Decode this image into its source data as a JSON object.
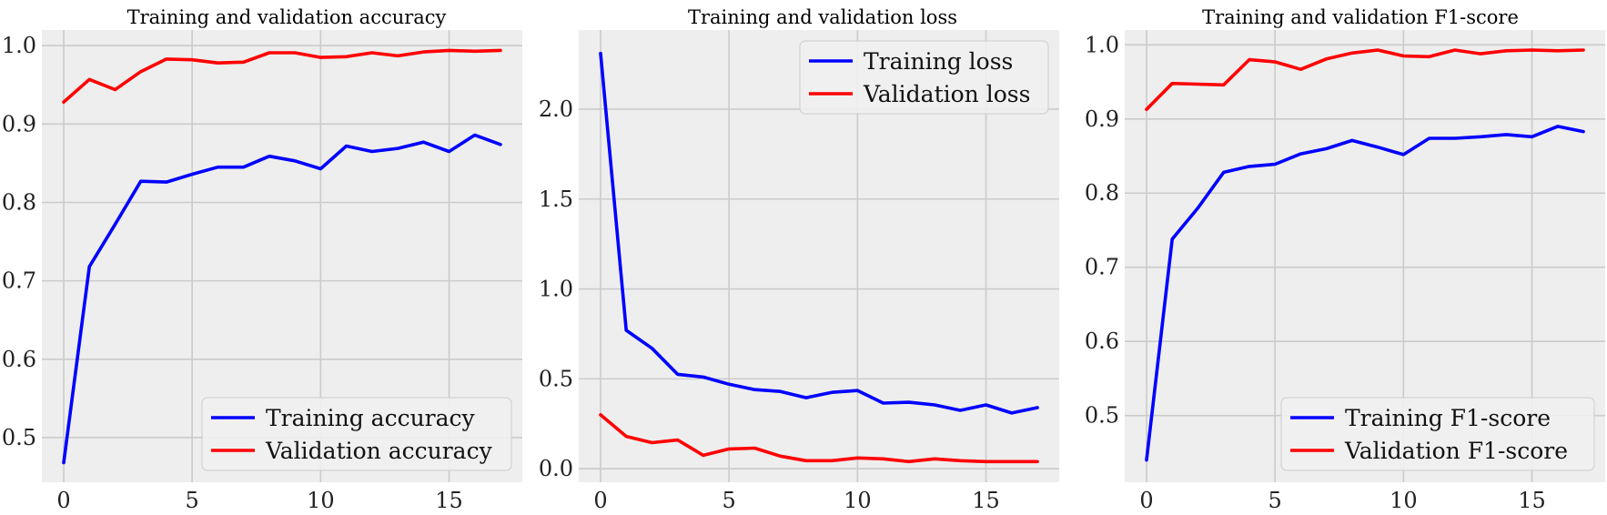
{
  "chart_data": [
    {
      "type": "line",
      "title": "Training and validation accuracy",
      "xlabel": "",
      "ylabel": "",
      "xlim": [
        -0.85,
        17.85
      ],
      "ylim": [
        0.443,
        1.02
      ],
      "xticks": [
        0,
        5,
        10,
        15
      ],
      "xtick_labels": [
        "0",
        "5",
        "10",
        "15"
      ],
      "yticks": [
        0.5,
        0.6,
        0.7,
        0.8,
        0.9,
        1.0
      ],
      "ytick_labels": [
        "0.5",
        "0.6",
        "0.7",
        "0.8",
        "0.9",
        "1.0"
      ],
      "grid": true,
      "legend_position": "lower-right",
      "x": [
        0,
        1,
        2,
        3,
        4,
        5,
        6,
        7,
        8,
        9,
        10,
        11,
        12,
        13,
        14,
        15,
        16,
        17
      ],
      "series": [
        {
          "name": "Training accuracy",
          "color": "#0000ff",
          "values": [
            0.468,
            0.718,
            0.772,
            0.827,
            0.826,
            0.836,
            0.845,
            0.845,
            0.859,
            0.853,
            0.843,
            0.872,
            0.865,
            0.869,
            0.877,
            0.865,
            0.886,
            0.874
          ]
        },
        {
          "name": "Validation accuracy",
          "color": "#ff0000",
          "values": [
            0.928,
            0.957,
            0.944,
            0.967,
            0.983,
            0.982,
            0.978,
            0.979,
            0.991,
            0.991,
            0.985,
            0.986,
            0.991,
            0.987,
            0.992,
            0.994,
            0.993,
            0.994
          ]
        }
      ]
    },
    {
      "type": "line",
      "title": "Training and validation loss",
      "xlabel": "",
      "ylabel": "",
      "xlim": [
        -0.85,
        17.85
      ],
      "ylim": [
        -0.075,
        2.44
      ],
      "xticks": [
        0,
        5,
        10,
        15
      ],
      "xtick_labels": [
        "0",
        "5",
        "10",
        "15"
      ],
      "yticks": [
        0.0,
        0.5,
        1.0,
        1.5,
        2.0
      ],
      "ytick_labels": [
        "0.0",
        "0.5",
        "1.0",
        "1.5",
        "2.0"
      ],
      "grid": true,
      "legend_position": "upper-right",
      "x": [
        0,
        1,
        2,
        3,
        4,
        5,
        6,
        7,
        8,
        9,
        10,
        11,
        12,
        13,
        14,
        15,
        16,
        17
      ],
      "series": [
        {
          "name": "Training loss",
          "color": "#0000ff",
          "values": [
            2.31,
            0.77,
            0.67,
            0.525,
            0.51,
            0.47,
            0.44,
            0.43,
            0.395,
            0.425,
            0.435,
            0.365,
            0.37,
            0.355,
            0.325,
            0.355,
            0.31,
            0.34
          ]
        },
        {
          "name": "Validation loss",
          "color": "#ff0000",
          "values": [
            0.3,
            0.18,
            0.145,
            0.16,
            0.075,
            0.11,
            0.115,
            0.07,
            0.045,
            0.045,
            0.06,
            0.055,
            0.04,
            0.055,
            0.045,
            0.04,
            0.04,
            0.04
          ]
        }
      ]
    },
    {
      "type": "line",
      "title": "Training and validation F1-score",
      "xlabel": "",
      "ylabel": "",
      "xlim": [
        -0.85,
        17.85
      ],
      "ylim": [
        0.41,
        1.02
      ],
      "xticks": [
        0,
        5,
        10,
        15
      ],
      "xtick_labels": [
        "0",
        "5",
        "10",
        "15"
      ],
      "yticks": [
        0.5,
        0.6,
        0.7,
        0.8,
        0.9,
        1.0
      ],
      "ytick_labels": [
        "0.5",
        "0.6",
        "0.7",
        "0.8",
        "0.9",
        "1.0"
      ],
      "grid": true,
      "legend_position": "lower-right",
      "x": [
        0,
        1,
        2,
        3,
        4,
        5,
        6,
        7,
        8,
        9,
        10,
        11,
        12,
        13,
        14,
        15,
        16,
        17
      ],
      "series": [
        {
          "name": "Training F1-score",
          "color": "#0000ff",
          "values": [
            0.44,
            0.738,
            0.78,
            0.828,
            0.836,
            0.839,
            0.853,
            0.86,
            0.871,
            0.862,
            0.852,
            0.874,
            0.874,
            0.876,
            0.879,
            0.876,
            0.89,
            0.883
          ]
        },
        {
          "name": "Validation F1-score",
          "color": "#ff0000",
          "values": [
            0.913,
            0.948,
            0.947,
            0.946,
            0.98,
            0.977,
            0.967,
            0.981,
            0.989,
            0.993,
            0.985,
            0.984,
            0.993,
            0.988,
            0.992,
            0.993,
            0.992,
            0.993
          ]
        }
      ]
    }
  ]
}
